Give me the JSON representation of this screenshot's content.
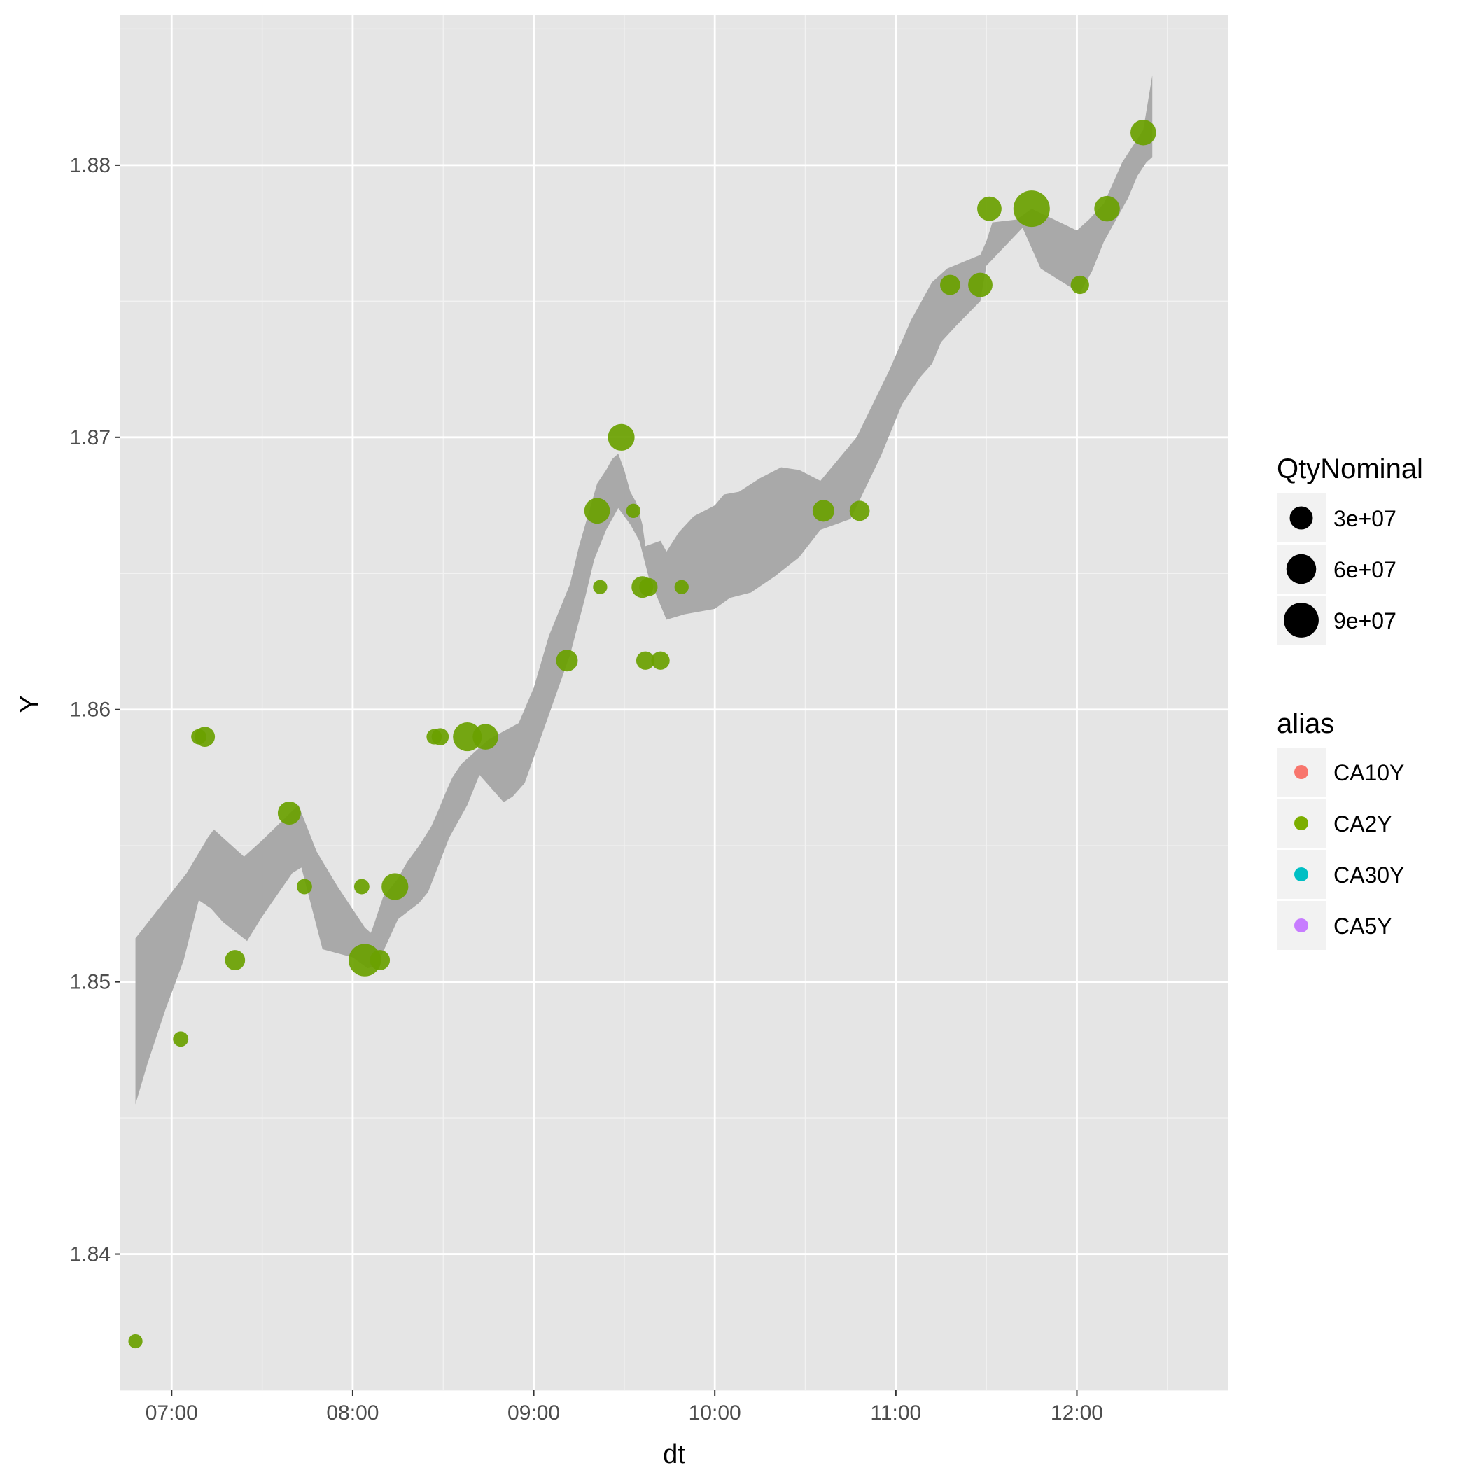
{
  "chart_data": {
    "type": "scatter",
    "title": "",
    "xlabel": "dt",
    "ylabel": "Y",
    "x_ticks": [
      "07:00",
      "08:00",
      "09:00",
      "10:00",
      "11:00",
      "12:00"
    ],
    "y_ticks": [
      "1.84",
      "1.85",
      "1.86",
      "1.87",
      "1.88"
    ],
    "xlim": [
      "06:43",
      "12:50"
    ],
    "ylim": [
      1.835,
      1.8855
    ],
    "grid": true,
    "colors": {
      "panel": "#e5e5e5",
      "grid": "#ffffff",
      "band": "#a9a9a9",
      "points": "#6aa100",
      "points_dark": "#56800c",
      "CA10Y": "#f8766d",
      "CA2Y": "#7cae00",
      "CA30Y": "#00bfc4",
      "CA5Y": "#c77cff"
    },
    "size_legend": {
      "title": "QtyNominal",
      "entries": [
        {
          "label": "3e+07",
          "value": 30000000
        },
        {
          "label": "6e+07",
          "value": 60000000
        },
        {
          "label": "9e+07",
          "value": 90000000
        }
      ]
    },
    "color_legend": {
      "title": "alias",
      "entries": [
        {
          "label": "CA10Y",
          "color": "#f8766d"
        },
        {
          "label": "CA2Y",
          "color": "#7cae00"
        },
        {
          "label": "CA30Y",
          "color": "#00bfc4"
        },
        {
          "label": "CA5Y",
          "color": "#c77cff"
        }
      ]
    },
    "band": {
      "upper": [
        [
          "06:48",
          1.8516
        ],
        [
          "07:05",
          1.854
        ],
        [
          "07:12",
          1.8553
        ],
        [
          "07:14",
          1.8556
        ],
        [
          "07:21",
          1.8549
        ],
        [
          "07:24",
          1.8546
        ],
        [
          "07:30",
          1.8552
        ],
        [
          "07:42",
          1.8565
        ],
        [
          "07:48",
          1.8548
        ],
        [
          "07:55",
          1.8535
        ],
        [
          "08:04",
          1.852
        ],
        [
          "08:06",
          1.8518
        ],
        [
          "08:07",
          1.8521
        ],
        [
          "08:10",
          1.8531
        ],
        [
          "08:15",
          1.8538
        ],
        [
          "08:18",
          1.8544
        ],
        [
          "08:22",
          1.855
        ],
        [
          "08:26",
          1.8557
        ],
        [
          "08:28",
          1.8562
        ],
        [
          "08:31",
          1.857
        ],
        [
          "08:33",
          1.8575
        ],
        [
          "08:36",
          1.858
        ],
        [
          "08:45",
          1.8589
        ],
        [
          "08:55",
          1.8595
        ],
        [
          "09:00",
          1.8608
        ],
        [
          "09:05",
          1.8627
        ],
        [
          "09:12",
          1.8646
        ],
        [
          "09:15",
          1.866
        ],
        [
          "09:21",
          1.8683
        ],
        [
          "09:24",
          1.8688
        ],
        [
          "09:26",
          1.8692
        ],
        [
          "09:28",
          1.8694
        ],
        [
          "09:30",
          1.8688
        ],
        [
          "09:32",
          1.868
        ],
        [
          "09:34",
          1.8676
        ],
        [
          "09:36",
          1.8668
        ],
        [
          "09:37",
          1.866
        ],
        [
          "09:42",
          1.8662
        ],
        [
          "09:44",
          1.8658
        ],
        [
          "09:48",
          1.8665
        ],
        [
          "09:53",
          1.8671
        ],
        [
          "10:00",
          1.8675
        ],
        [
          "10:03",
          1.8679
        ],
        [
          "10:08",
          1.868
        ],
        [
          "10:15",
          1.8685
        ],
        [
          "10:22",
          1.8689
        ],
        [
          "10:28",
          1.8688
        ],
        [
          "10:35",
          1.8684
        ],
        [
          "10:47",
          1.87
        ],
        [
          "10:58",
          1.8725
        ],
        [
          "11:05",
          1.8743
        ],
        [
          "11:12",
          1.8757
        ],
        [
          "11:17",
          1.8762
        ],
        [
          "11:28",
          1.8767
        ],
        [
          "11:30",
          1.8772
        ],
        [
          "11:32",
          1.8779
        ],
        [
          "11:40",
          1.878
        ],
        [
          "11:45",
          1.8784
        ],
        [
          "12:00",
          1.8776
        ],
        [
          "12:04",
          1.878
        ],
        [
          "12:09",
          1.8786
        ],
        [
          "12:15",
          1.8801
        ],
        [
          "12:22",
          1.8813
        ],
        [
          "12:25",
          1.8833
        ]
      ],
      "lower": [
        [
          "06:48",
          1.8455
        ],
        [
          "06:52",
          1.847
        ],
        [
          "06:58",
          1.849
        ],
        [
          "07:04",
          1.8508
        ],
        [
          "07:09",
          1.853
        ],
        [
          "07:13",
          1.8527
        ],
        [
          "07:17",
          1.8522
        ],
        [
          "07:25",
          1.8515
        ],
        [
          "07:30",
          1.8524
        ],
        [
          "07:40",
          1.854
        ],
        [
          "07:43",
          1.8542
        ],
        [
          "07:50",
          1.8512
        ],
        [
          "08:00",
          1.8509
        ],
        [
          "08:05",
          1.8505
        ],
        [
          "08:08",
          1.8506
        ],
        [
          "08:15",
          1.8523
        ],
        [
          "08:22",
          1.8529
        ],
        [
          "08:25",
          1.8533
        ],
        [
          "08:32",
          1.8553
        ],
        [
          "08:38",
          1.8565
        ],
        [
          "08:42",
          1.8576
        ],
        [
          "08:50",
          1.8566
        ],
        [
          "08:53",
          1.8568
        ],
        [
          "08:57",
          1.8573
        ],
        [
          "09:05",
          1.8598
        ],
        [
          "09:12",
          1.862
        ],
        [
          "09:17",
          1.8641
        ],
        [
          "09:20",
          1.8655
        ],
        [
          "09:24",
          1.8666
        ],
        [
          "09:28",
          1.8674
        ],
        [
          "09:32",
          1.8668
        ],
        [
          "09:35",
          1.8662
        ],
        [
          "09:38",
          1.8649
        ],
        [
          "09:44",
          1.8633
        ],
        [
          "09:50",
          1.8635
        ],
        [
          "10:00",
          1.8637
        ],
        [
          "10:05",
          1.8641
        ],
        [
          "10:12",
          1.8643
        ],
        [
          "10:20",
          1.8649
        ],
        [
          "10:28",
          1.8656
        ],
        [
          "10:35",
          1.8666
        ],
        [
          "10:45",
          1.867
        ],
        [
          "10:55",
          1.8693
        ],
        [
          "11:02",
          1.8712
        ],
        [
          "11:08",
          1.8722
        ],
        [
          "11:12",
          1.8727
        ],
        [
          "11:15",
          1.8735
        ],
        [
          "11:20",
          1.8741
        ],
        [
          "11:28",
          1.875
        ],
        [
          "11:30",
          1.8763
        ],
        [
          "11:42",
          1.8777
        ],
        [
          "11:48",
          1.8762
        ],
        [
          "12:01",
          1.8753
        ],
        [
          "12:05",
          1.8761
        ],
        [
          "12:09",
          1.8772
        ],
        [
          "12:17",
          1.8788
        ],
        [
          "12:20",
          1.8796
        ],
        [
          "12:23",
          1.8801
        ],
        [
          "12:25",
          1.8803
        ]
      ]
    },
    "series": [
      {
        "name": "CA2Y",
        "points": [
          {
            "x": "06:48",
            "y": 1.8368,
            "qty": 6000000
          },
          {
            "x": "07:03",
            "y": 1.8479,
            "qty": 8000000
          },
          {
            "x": "07:09",
            "y": 1.859,
            "qty": 8000000
          },
          {
            "x": "07:11",
            "y": 1.859,
            "qty": 20000000
          },
          {
            "x": "07:21",
            "y": 1.8508,
            "qty": 20000000
          },
          {
            "x": "07:39",
            "y": 1.8562,
            "qty": 30000000
          },
          {
            "x": "07:44",
            "y": 1.8535,
            "qty": 8000000
          },
          {
            "x": "08:03",
            "y": 1.8535,
            "qty": 8000000
          },
          {
            "x": "08:04",
            "y": 1.8508,
            "qty": 75000000
          },
          {
            "x": "08:09",
            "y": 1.8508,
            "qty": 20000000
          },
          {
            "x": "08:14",
            "y": 1.8535,
            "qty": 45000000
          },
          {
            "x": "08:27",
            "y": 1.859,
            "qty": 8000000
          },
          {
            "x": "08:29",
            "y": 1.859,
            "qty": 12000000
          },
          {
            "x": "08:38",
            "y": 1.859,
            "qty": 55000000
          },
          {
            "x": "08:44",
            "y": 1.859,
            "qty": 40000000
          },
          {
            "x": "09:11",
            "y": 1.8618,
            "qty": 25000000
          },
          {
            "x": "09:21",
            "y": 1.8673,
            "qty": 40000000
          },
          {
            "x": "09:22",
            "y": 1.8645,
            "qty": 6000000
          },
          {
            "x": "09:29",
            "y": 1.87,
            "qty": 45000000
          },
          {
            "x": "09:33",
            "y": 1.8673,
            "qty": 6000000
          },
          {
            "x": "09:36",
            "y": 1.8645,
            "qty": 25000000
          },
          {
            "x": "09:37",
            "y": 1.8618,
            "qty": 15000000
          },
          {
            "x": "09:38",
            "y": 1.8645,
            "qty": 15000000
          },
          {
            "x": "09:42",
            "y": 1.8618,
            "qty": 15000000
          },
          {
            "x": "09:49",
            "y": 1.8645,
            "qty": 6000000
          },
          {
            "x": "10:36",
            "y": 1.8673,
            "qty": 25000000
          },
          {
            "x": "10:48",
            "y": 1.8673,
            "qty": 20000000
          },
          {
            "x": "11:18",
            "y": 1.8756,
            "qty": 20000000
          },
          {
            "x": "11:28",
            "y": 1.8756,
            "qty": 35000000
          },
          {
            "x": "11:31",
            "y": 1.8784,
            "qty": 35000000
          },
          {
            "x": "11:45",
            "y": 1.8784,
            "qty": 100000000
          },
          {
            "x": "12:01",
            "y": 1.8756,
            "qty": 15000000
          },
          {
            "x": "12:10",
            "y": 1.8784,
            "qty": 40000000
          },
          {
            "x": "12:22",
            "y": 1.8812,
            "qty": 40000000
          }
        ]
      }
    ]
  }
}
